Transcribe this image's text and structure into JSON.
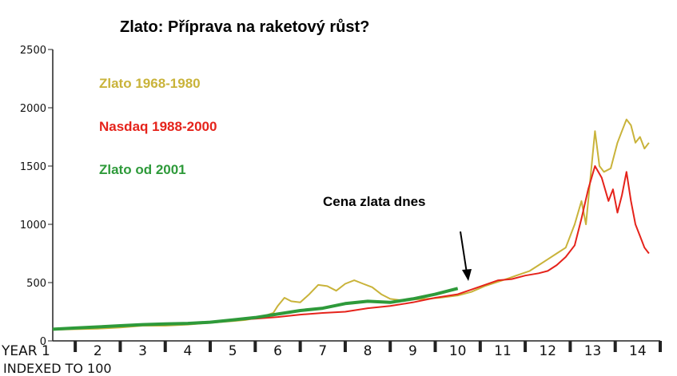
{
  "chart_data": {
    "type": "line",
    "title": "Zlato: Příprava na raketový růst?",
    "xlabel": "INDEXED TO 100",
    "ylabel": "",
    "xlim": [
      1,
      14.5
    ],
    "ylim": [
      0,
      2500
    ],
    "y_ticks": [
      0,
      500,
      1000,
      1500,
      2000,
      2500
    ],
    "x_tick_labels": [
      "YEAR 1",
      "2",
      "3",
      "4",
      "5",
      "6",
      "7",
      "8",
      "9",
      "10",
      "11",
      "12",
      "13",
      "14"
    ],
    "annotation": "Cena zlata dnes",
    "annotation_x": 10,
    "legend_position": "top-left",
    "grid": false,
    "series": [
      {
        "name": "Zlato 1968-1980",
        "color": "#c9b33a",
        "x": [
          1,
          1.5,
          2,
          2.5,
          3,
          3.5,
          4,
          4.5,
          5,
          5.3,
          5.6,
          5.9,
          6.0,
          6.15,
          6.3,
          6.5,
          6.7,
          6.9,
          7.1,
          7.3,
          7.5,
          7.7,
          7.9,
          8.1,
          8.3,
          8.5,
          8.7,
          9.0,
          9.3,
          9.6,
          10.0,
          10.3,
          10.6,
          11.0,
          11.3,
          11.6,
          11.8,
          12.0,
          12.2,
          12.4,
          12.6,
          12.75,
          12.85,
          12.95,
          13.05,
          13.15,
          13.25,
          13.4,
          13.55,
          13.65,
          13.75,
          13.85,
          13.95,
          14.05,
          14.15,
          14.25
        ],
        "y": [
          95,
          100,
          105,
          115,
          130,
          130,
          140,
          155,
          170,
          180,
          200,
          240,
          300,
          370,
          340,
          330,
          400,
          480,
          470,
          430,
          490,
          520,
          490,
          460,
          400,
          360,
          350,
          355,
          360,
          370,
          390,
          420,
          470,
          520,
          560,
          600,
          650,
          700,
          750,
          800,
          1000,
          1200,
          1000,
          1400,
          1800,
          1500,
          1450,
          1480,
          1700,
          1800,
          1900,
          1850,
          1700,
          1750,
          1650,
          1700
        ]
      },
      {
        "name": "Nasdaq 1988-2000",
        "color": "#e5231b",
        "x": [
          1,
          1.5,
          2,
          2.5,
          3,
          3.5,
          4,
          4.5,
          5,
          5.5,
          6,
          6.5,
          7,
          7.5,
          8,
          8.5,
          9,
          9.5,
          10,
          10.3,
          10.6,
          10.9,
          11.2,
          11.5,
          11.8,
          12.0,
          12.2,
          12.4,
          12.6,
          12.75,
          12.9,
          13.05,
          13.2,
          13.35,
          13.45,
          13.55,
          13.65,
          13.75,
          13.85,
          13.95,
          14.05,
          14.15,
          14.25
        ],
        "y": [
          100,
          110,
          120,
          130,
          140,
          145,
          150,
          165,
          180,
          190,
          205,
          225,
          240,
          250,
          280,
          300,
          330,
          370,
          400,
          440,
          480,
          520,
          530,
          560,
          580,
          600,
          650,
          720,
          820,
          1050,
          1300,
          1500,
          1400,
          1200,
          1300,
          1100,
          1250,
          1450,
          1200,
          1000,
          900,
          800,
          750
        ]
      },
      {
        "name": "Zlato od 2001",
        "color": "#2e9a3a",
        "x": [
          1,
          1.5,
          2,
          2.5,
          3,
          3.5,
          4,
          4.5,
          5,
          5.5,
          6,
          6.5,
          7,
          7.5,
          8,
          8.5,
          9,
          9.5,
          10
        ],
        "y": [
          100,
          110,
          120,
          130,
          140,
          145,
          150,
          160,
          180,
          200,
          230,
          260,
          280,
          320,
          340,
          330,
          360,
          400,
          450
        ]
      }
    ]
  }
}
